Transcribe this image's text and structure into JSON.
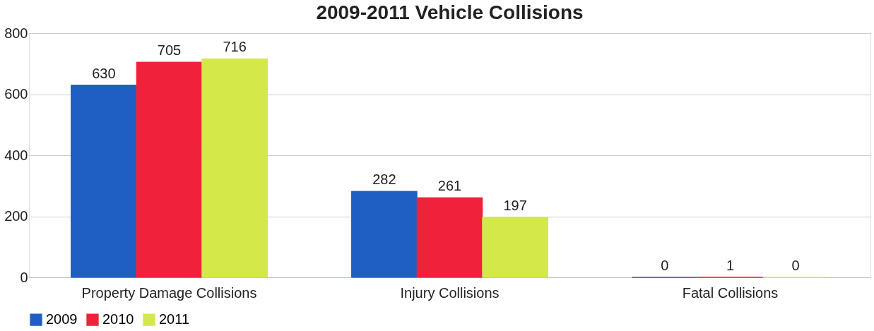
{
  "chart_data": {
    "type": "bar",
    "title": "2009-2011 Vehicle Collisions",
    "categories": [
      "Property Damage Collisions",
      "Injury Collisions",
      "Fatal Collisions"
    ],
    "series": [
      {
        "name": "2009",
        "color": "#1f5fc4",
        "values": [
          630,
          282,
          0
        ]
      },
      {
        "name": "2010",
        "color": "#f0213a",
        "values": [
          705,
          261,
          1
        ]
      },
      {
        "name": "2011",
        "color": "#d4e84a",
        "values": [
          716,
          197,
          0
        ]
      }
    ],
    "ylim": [
      0,
      800
    ],
    "yticks": [
      0,
      200,
      400,
      600,
      800
    ],
    "grid": "y",
    "legend": "bottom",
    "data_labels": true
  }
}
